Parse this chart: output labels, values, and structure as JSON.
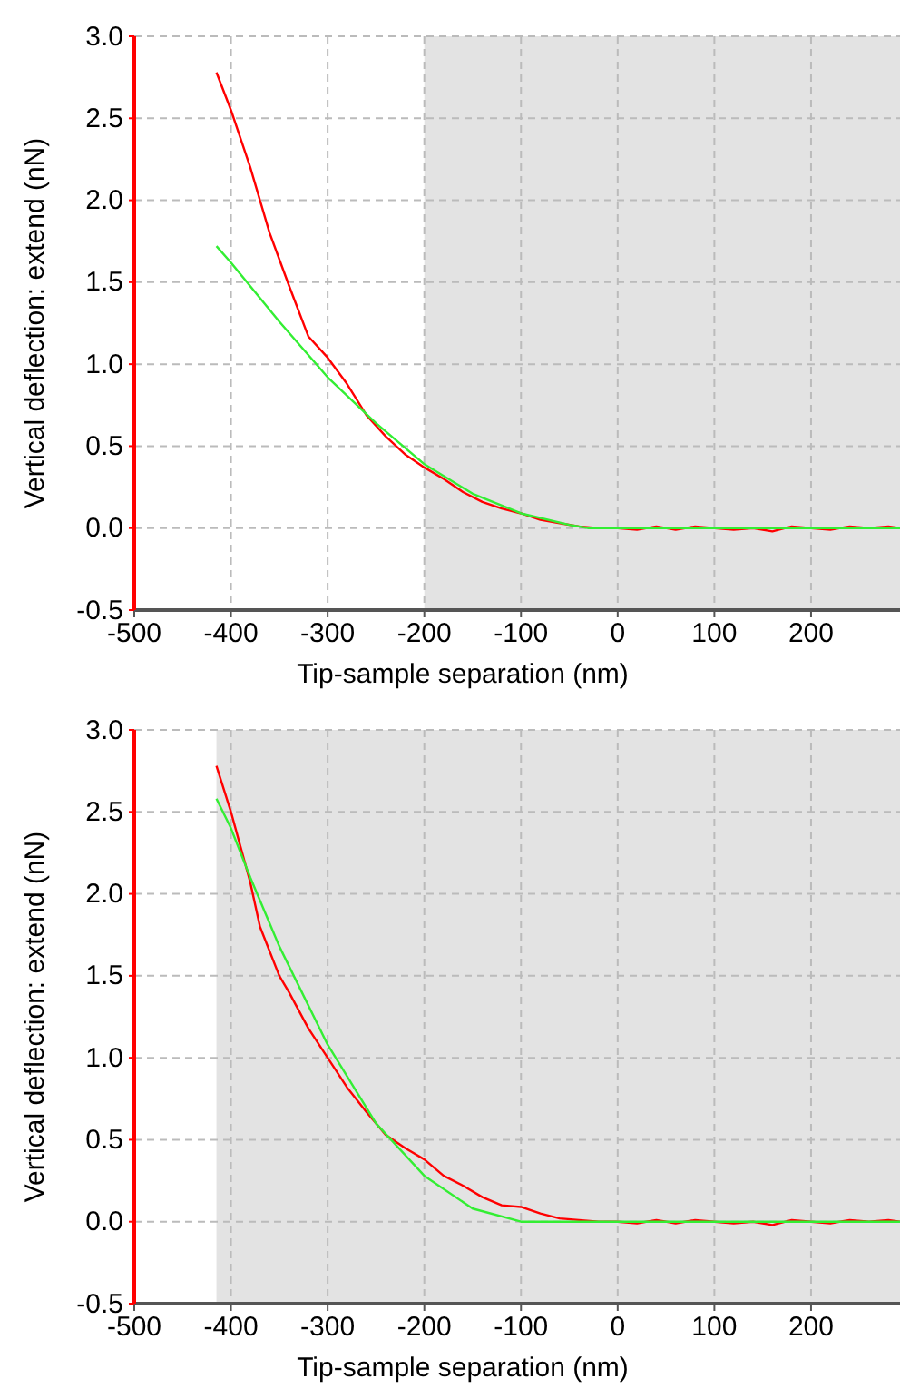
{
  "chart_data": [
    {
      "type": "line",
      "xlabel": "Tip-sample separation (nm)",
      "ylabel": "Vertical deflection: extend (nN)",
      "xlim": [
        -500,
        292
      ],
      "ylim": [
        -0.5,
        3.0
      ],
      "xticks": [
        -500,
        -400,
        -300,
        -200,
        -100,
        0,
        100,
        200
      ],
      "yticks": [
        {
          "value": -0.5,
          "label": "-0.5"
        },
        {
          "value": 0,
          "label": "0.0"
        },
        {
          "value": 0.5,
          "label": "0.5"
        },
        {
          "value": 1,
          "label": "1.0"
        },
        {
          "value": 1.5,
          "label": "1.5"
        },
        {
          "value": 2,
          "label": "2.0"
        },
        {
          "value": 2.5,
          "label": "2.5"
        },
        {
          "value": 3,
          "label": "3.0"
        }
      ],
      "grid": true,
      "bands": [
        {
          "axis": "x",
          "from": -200,
          "to": 292,
          "color": "#e3e3e3"
        }
      ],
      "series": [
        {
          "color": "#ff0000",
          "x": [
            -415,
            -400,
            -380,
            -360,
            -340,
            -320,
            -300,
            -280,
            -260,
            -240,
            -220,
            -200,
            -180,
            -160,
            -140,
            -120,
            -100,
            -80,
            -60,
            -40,
            -20,
            0,
            20,
            40,
            60,
            80,
            100,
            120,
            140,
            160,
            180,
            200,
            220,
            240,
            260,
            280,
            292
          ],
          "values": [
            2.78,
            2.55,
            2.2,
            1.8,
            1.48,
            1.17,
            1.04,
            0.88,
            0.69,
            0.56,
            0.45,
            0.37,
            0.3,
            0.22,
            0.16,
            0.12,
            0.09,
            0.05,
            0.03,
            0.01,
            0.0,
            0.0,
            -0.01,
            0.01,
            -0.01,
            0.01,
            0.0,
            -0.01,
            0.0,
            -0.02,
            0.01,
            0.0,
            -0.01,
            0.01,
            0.0,
            0.01,
            0.0
          ]
        },
        {
          "color": "#33ee33",
          "x": [
            -415,
            -400,
            -350,
            -300,
            -250,
            -200,
            -150,
            -100,
            -50,
            -30,
            292
          ],
          "values": [
            1.72,
            1.62,
            1.26,
            0.92,
            0.64,
            0.39,
            0.21,
            0.09,
            0.02,
            0.0,
            0.0
          ]
        }
      ]
    },
    {
      "type": "line",
      "xlabel": "Tip-sample separation (nm)",
      "ylabel": "Vertical deflection: extend (nN)",
      "xlim": [
        -500,
        292
      ],
      "ylim": [
        -0.5,
        3.0
      ],
      "xticks": [
        -500,
        -400,
        -300,
        -200,
        -100,
        0,
        100,
        200
      ],
      "yticks": [
        {
          "value": -0.5,
          "label": "-0.5"
        },
        {
          "value": 0,
          "label": "0.0"
        },
        {
          "value": 0.5,
          "label": "0.5"
        },
        {
          "value": 1,
          "label": "1.0"
        },
        {
          "value": 1.5,
          "label": "1.5"
        },
        {
          "value": 2,
          "label": "2.0"
        },
        {
          "value": 2.5,
          "label": "2.5"
        },
        {
          "value": 3,
          "label": "3.0"
        }
      ],
      "grid": true,
      "bands": [
        {
          "axis": "x",
          "from": -415,
          "to": 292,
          "color": "#e3e3e3"
        }
      ],
      "series": [
        {
          "color": "#ff0000",
          "x": [
            -415,
            -400,
            -380,
            -370,
            -350,
            -340,
            -320,
            -300,
            -280,
            -260,
            -240,
            -220,
            -200,
            -180,
            -160,
            -140,
            -120,
            -100,
            -80,
            -60,
            -40,
            -20,
            0,
            20,
            40,
            60,
            80,
            100,
            120,
            140,
            160,
            180,
            200,
            220,
            240,
            260,
            280,
            292
          ],
          "values": [
            2.78,
            2.5,
            2.07,
            1.8,
            1.5,
            1.4,
            1.18,
            1.0,
            0.82,
            0.67,
            0.53,
            0.45,
            0.38,
            0.28,
            0.22,
            0.15,
            0.1,
            0.09,
            0.05,
            0.02,
            0.01,
            0.0,
            0.0,
            -0.01,
            0.01,
            -0.01,
            0.01,
            0.0,
            -0.01,
            0.0,
            -0.02,
            0.01,
            0.0,
            -0.01,
            0.01,
            0.0,
            0.01,
            0.0
          ]
        },
        {
          "color": "#33ee33",
          "x": [
            -415,
            -400,
            -380,
            -350,
            -300,
            -250,
            -200,
            -150,
            -100,
            292
          ],
          "values": [
            2.58,
            2.4,
            2.1,
            1.68,
            1.08,
            0.6,
            0.28,
            0.08,
            0.0,
            0.0
          ]
        }
      ]
    }
  ]
}
